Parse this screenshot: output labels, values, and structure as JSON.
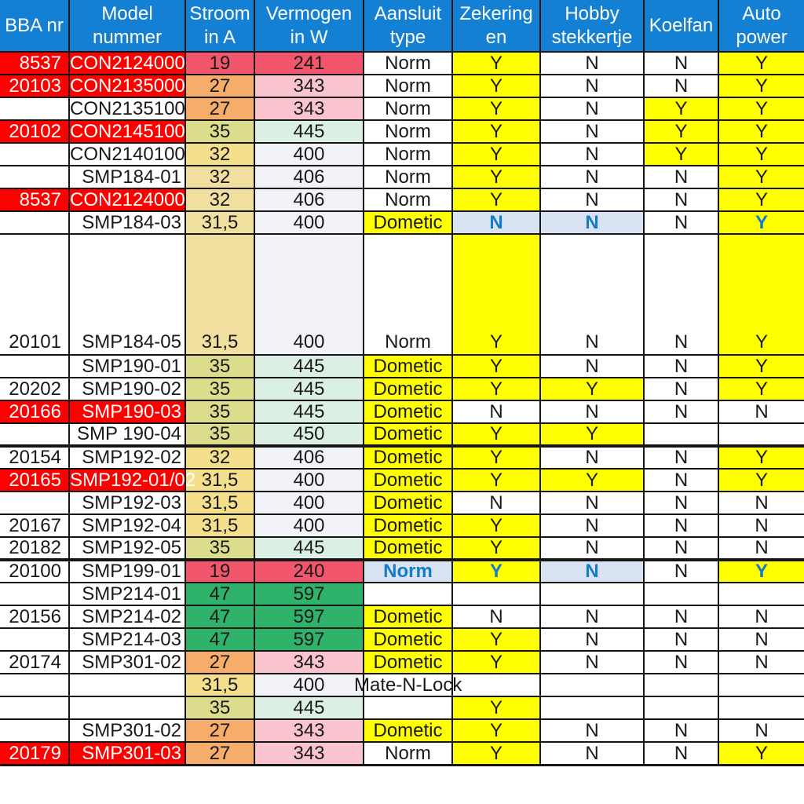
{
  "palette": {
    "header_bg": "#1480d4",
    "header_fg": "#ffffff",
    "red": "#fe0000",
    "salmon": "#f2566d",
    "orange": "#f6ad6c",
    "pink": "#f9c4ce",
    "gold": "#f4df8c",
    "tan": "#f1dfa0",
    "olive": "#dcdc8d",
    "mint": "#dcefe5",
    "off": "#f1f3f8",
    "green": "#2fb26a",
    "yellow": "#ffff00",
    "lblue": "#d9e2f3",
    "blue": "#147cc6",
    "white": "#ffffff",
    "black": "#191919"
  },
  "table": {
    "columns": [
      {
        "key": "bba-nr",
        "label": "BBA nr",
        "width": 88
      },
      {
        "key": "model-nummer",
        "label": "Model\nnummer",
        "width": 148
      },
      {
        "key": "stroom-in-a",
        "label": "Stroom\nin A",
        "width": 88
      },
      {
        "key": "vermogen-in-w",
        "label": "Vermogen\nin W",
        "width": 139
      },
      {
        "key": "aansluit-type",
        "label": "Aansluit\ntype",
        "width": 113
      },
      {
        "key": "zekeringen",
        "label": "Zekering\nen",
        "width": 112
      },
      {
        "key": "hobby-stekkertje",
        "label": "Hobby\nstekkertje",
        "width": 132
      },
      {
        "key": "koelfan",
        "label": "Koelfan",
        "width": 95
      },
      {
        "key": "auto-power",
        "label": "Auto\npower",
        "width": 109
      }
    ],
    "rows": [
      {
        "cells": [
          [
            "8537",
            "red",
            "white"
          ],
          [
            "CON2124000",
            "red",
            "white"
          ],
          [
            "19",
            "salmon"
          ],
          [
            "241",
            "salmon"
          ],
          [
            "Norm"
          ],
          [
            "Y",
            "yellow"
          ],
          [
            "N"
          ],
          [
            "N"
          ],
          [
            "Y",
            "yellow"
          ]
        ]
      },
      {
        "cells": [
          [
            "20103",
            "red",
            "white"
          ],
          [
            "CON2135000",
            "red",
            "white"
          ],
          [
            "27",
            "orange"
          ],
          [
            "343",
            "pink"
          ],
          [
            "Norm"
          ],
          [
            "Y",
            "yellow"
          ],
          [
            "N"
          ],
          [
            "N"
          ],
          [
            "Y",
            "yellow"
          ]
        ]
      },
      {
        "cells": [
          [
            ""
          ],
          [
            "CON2135100"
          ],
          [
            "27",
            "orange"
          ],
          [
            "343",
            "pink"
          ],
          [
            "Norm"
          ],
          [
            "Y",
            "yellow"
          ],
          [
            "N"
          ],
          [
            "Y",
            "yellow"
          ],
          [
            "Y",
            "yellow"
          ]
        ]
      },
      {
        "cells": [
          [
            "20102",
            "red",
            "white"
          ],
          [
            "CON2145100",
            "red",
            "white"
          ],
          [
            "35",
            "olive"
          ],
          [
            "445",
            "mint"
          ],
          [
            "Norm"
          ],
          [
            "Y",
            "yellow"
          ],
          [
            "N"
          ],
          [
            "Y",
            "yellow"
          ],
          [
            "Y",
            "yellow"
          ]
        ]
      },
      {
        "cells": [
          [
            ""
          ],
          [
            "CON2140100"
          ],
          [
            "32",
            "gold"
          ],
          [
            "400",
            "off"
          ],
          [
            "Norm"
          ],
          [
            "Y",
            "yellow"
          ],
          [
            "N"
          ],
          [
            "Y",
            "yellow"
          ],
          [
            "Y",
            "yellow"
          ]
        ]
      },
      {
        "cells": [
          [
            ""
          ],
          [
            "SMP184-01"
          ],
          [
            "32",
            "tan"
          ],
          [
            "406",
            "off"
          ],
          [
            "Norm"
          ],
          [
            "Y",
            "yellow"
          ],
          [
            "N"
          ],
          [
            "N"
          ],
          [
            "Y",
            "yellow"
          ]
        ]
      },
      {
        "cells": [
          [
            "8537",
            "red",
            "white"
          ],
          [
            "CON2124000",
            "red",
            "white"
          ],
          [
            "32",
            "tan"
          ],
          [
            "406",
            "off"
          ],
          [
            "Norm"
          ],
          [
            "Y",
            "yellow"
          ],
          [
            "N"
          ],
          [
            "N"
          ],
          [
            "Y",
            "yellow"
          ]
        ]
      },
      {
        "cells": [
          [
            ""
          ],
          [
            "SMP184-03"
          ],
          [
            "31,5",
            "tan"
          ],
          [
            "400",
            "off"
          ],
          [
            "Dometic",
            "yellow"
          ],
          [
            "N",
            "lblue",
            "blue",
            1
          ],
          [
            "N",
            "lblue",
            "blue",
            1
          ],
          [
            "N"
          ],
          [
            "Y",
            "yellow",
            "blue",
            1
          ]
        ]
      },
      {
        "tall": true,
        "cells": [
          [
            "20101"
          ],
          [
            "SMP184-05"
          ],
          [
            "31,5",
            "tan"
          ],
          [
            "400",
            "off"
          ],
          [
            "Norm"
          ],
          [
            "Y",
            "yellow"
          ],
          [
            "N"
          ],
          [
            "N"
          ],
          [
            "Y",
            "yellow"
          ]
        ]
      },
      {
        "cells": [
          [
            ""
          ],
          [
            "SMP190-01"
          ],
          [
            "35",
            "olive"
          ],
          [
            "445",
            "mint"
          ],
          [
            "Dometic",
            "yellow"
          ],
          [
            "Y",
            "yellow"
          ],
          [
            "N"
          ],
          [
            "N"
          ],
          [
            "Y",
            "yellow"
          ]
        ]
      },
      {
        "cells": [
          [
            "20202"
          ],
          [
            "SMP190-02"
          ],
          [
            "35",
            "olive"
          ],
          [
            "445",
            "mint"
          ],
          [
            "Dometic",
            "yellow"
          ],
          [
            "Y",
            "yellow"
          ],
          [
            "Y",
            "yellow"
          ],
          [
            "N"
          ],
          [
            "Y",
            "yellow"
          ]
        ]
      },
      {
        "cells": [
          [
            "20166",
            "red",
            "white"
          ],
          [
            "SMP190-03",
            "red",
            "white"
          ],
          [
            "35",
            "olive"
          ],
          [
            "445",
            "mint"
          ],
          [
            "Dometic",
            "yellow"
          ],
          [
            "N"
          ],
          [
            "N"
          ],
          [
            "N"
          ],
          [
            "N"
          ]
        ]
      },
      {
        "cells": [
          [
            ""
          ],
          [
            "SMP 190-04"
          ],
          [
            "35",
            "olive"
          ],
          [
            "450",
            "mint"
          ],
          [
            "Dometic",
            "yellow"
          ],
          [
            "Y",
            "yellow"
          ],
          [
            "Y",
            "yellow"
          ],
          [
            ""
          ],
          [
            ""
          ]
        ]
      },
      {
        "thick_top": true,
        "cells": [
          [
            "20154"
          ],
          [
            "SMP192-02"
          ],
          [
            "32",
            "gold"
          ],
          [
            "406",
            "off"
          ],
          [
            "Dometic",
            "yellow"
          ],
          [
            "Y",
            "yellow"
          ],
          [
            "N"
          ],
          [
            "N"
          ],
          [
            "Y",
            "yellow"
          ]
        ]
      },
      {
        "cells": [
          [
            "20165",
            "red",
            "white"
          ],
          [
            "SMP192-01/02",
            "red",
            "white"
          ],
          [
            "31,5",
            "gold"
          ],
          [
            "400",
            "off"
          ],
          [
            "Dometic",
            "yellow"
          ],
          [
            "Y",
            "yellow"
          ],
          [
            "Y",
            "yellow"
          ],
          [
            "N"
          ],
          [
            "Y",
            "yellow"
          ]
        ]
      },
      {
        "cells": [
          [
            ""
          ],
          [
            "SMP192-03"
          ],
          [
            "31,5",
            "gold"
          ],
          [
            "400",
            "off"
          ],
          [
            "Dometic",
            "yellow"
          ],
          [
            "N"
          ],
          [
            "N"
          ],
          [
            "N"
          ],
          [
            "N"
          ]
        ]
      },
      {
        "cells": [
          [
            "20167"
          ],
          [
            "SMP192-04"
          ],
          [
            "31,5",
            "gold"
          ],
          [
            "400",
            "off"
          ],
          [
            "Dometic",
            "yellow"
          ],
          [
            "Y",
            "yellow"
          ],
          [
            "N"
          ],
          [
            "N"
          ],
          [
            "N"
          ]
        ]
      },
      {
        "cells": [
          [
            "20182"
          ],
          [
            "SMP192-05"
          ],
          [
            "35",
            "olive"
          ],
          [
            "445",
            "mint"
          ],
          [
            "Dometic",
            "yellow"
          ],
          [
            "Y",
            "yellow"
          ],
          [
            "N"
          ],
          [
            "N"
          ],
          [
            "N"
          ]
        ]
      },
      {
        "thick_top": true,
        "cells": [
          [
            "20100"
          ],
          [
            "SMP199-01"
          ],
          [
            "19",
            "salmon"
          ],
          [
            "240",
            "salmon"
          ],
          [
            "Norm",
            "lblue",
            "blue",
            1
          ],
          [
            "Y",
            "yellow",
            "blue",
            1
          ],
          [
            "N",
            "lblue",
            "blue",
            1
          ],
          [
            "N"
          ],
          [
            "Y",
            "yellow",
            "blue",
            1
          ]
        ]
      },
      {
        "cells": [
          [
            ""
          ],
          [
            "SMP214-01"
          ],
          [
            "47",
            "green"
          ],
          [
            "597",
            "green"
          ],
          [
            ""
          ],
          [
            ""
          ],
          [
            ""
          ],
          [
            ""
          ],
          [
            ""
          ]
        ]
      },
      {
        "cells": [
          [
            "20156"
          ],
          [
            "SMP214-02"
          ],
          [
            "47",
            "green"
          ],
          [
            "597",
            "green"
          ],
          [
            "Dometic",
            "yellow"
          ],
          [
            "N"
          ],
          [
            "N"
          ],
          [
            "N"
          ],
          [
            "N"
          ]
        ]
      },
      {
        "cells": [
          [
            ""
          ],
          [
            "SMP214-03"
          ],
          [
            "47",
            "green"
          ],
          [
            "597",
            "green"
          ],
          [
            "Dometic",
            "yellow"
          ],
          [
            "Y",
            "yellow"
          ],
          [
            "N"
          ],
          [
            "N"
          ],
          [
            "N"
          ]
        ]
      },
      {
        "cells": [
          [
            "20174"
          ],
          [
            "SMP301-02"
          ],
          [
            "27",
            "orange"
          ],
          [
            "343",
            "pink"
          ],
          [
            "Dometic",
            "yellow"
          ],
          [
            "Y",
            "yellow"
          ],
          [
            "N"
          ],
          [
            "N"
          ],
          [
            "N"
          ]
        ]
      },
      {
        "cells": [
          [
            ""
          ],
          [
            ""
          ],
          [
            "31,5",
            "gold"
          ],
          [
            "400",
            "off"
          ],
          [
            "Mate-N-Lock",
            null,
            null,
            0,
            "clip"
          ],
          [
            ""
          ],
          [
            ""
          ],
          [
            ""
          ],
          [
            ""
          ]
        ]
      },
      {
        "cells": [
          [
            ""
          ],
          [
            ""
          ],
          [
            "35",
            "olive"
          ],
          [
            "445",
            "mint"
          ],
          [
            ""
          ],
          [
            "Y",
            "yellow"
          ],
          [
            ""
          ],
          [
            ""
          ],
          [
            ""
          ]
        ]
      },
      {
        "cells": [
          [
            ""
          ],
          [
            "SMP301-02"
          ],
          [
            "27",
            "orange"
          ],
          [
            "343",
            "pink"
          ],
          [
            "Dometic",
            "yellow"
          ],
          [
            "Y",
            "yellow"
          ],
          [
            "N"
          ],
          [
            "N"
          ],
          [
            "N"
          ]
        ]
      },
      {
        "cells": [
          [
            "20179",
            "red",
            "white"
          ],
          [
            "SMP301-03",
            "red",
            "white"
          ],
          [
            "27",
            "orange"
          ],
          [
            "343",
            "pink"
          ],
          [
            "Norm"
          ],
          [
            "Y",
            "yellow"
          ],
          [
            "N"
          ],
          [
            "N"
          ],
          [
            "Y",
            "yellow"
          ]
        ]
      }
    ]
  }
}
